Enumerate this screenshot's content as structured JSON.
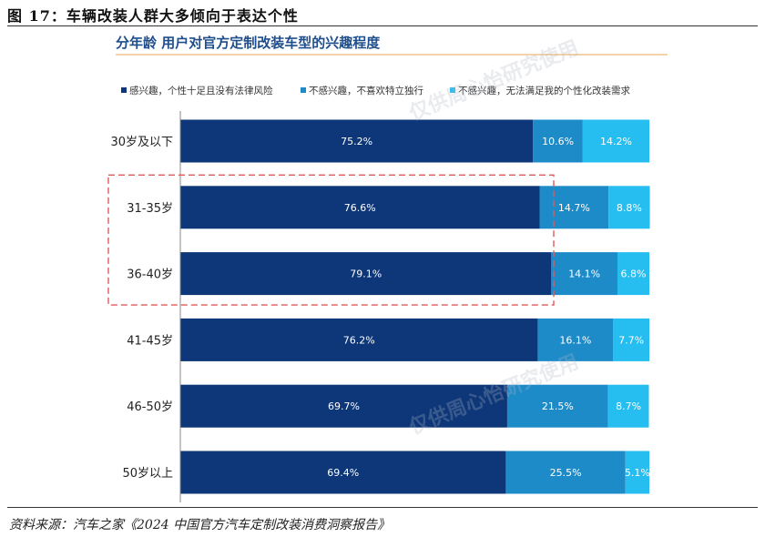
{
  "figure": {
    "title": "图 17：车辆改装人群大多倾向于表达个性",
    "source": "资料来源：汽车之家《2024 中国官方汽车定制改装消费洞察报告》"
  },
  "chart_data": {
    "type": "bar",
    "stacked": true,
    "orientation": "horizontal",
    "title": "分年龄 用户对官方定制改装车型的兴趣程度",
    "categories": [
      "30岁及以下",
      "31-35岁",
      "36-40岁",
      "41-45岁",
      "46-50岁",
      "50岁以上"
    ],
    "series": [
      {
        "name": "感兴趣，个性十足且没有法律风险",
        "values": [
          75.2,
          76.6,
          79.1,
          76.2,
          69.7,
          69.4
        ],
        "labels": [
          "75.2%",
          "76.6%",
          "79.1%",
          "76.2%",
          "69.7%",
          "69.4%"
        ]
      },
      {
        "name": "不感兴趣，不喜欢特立独行",
        "values": [
          10.6,
          14.7,
          14.1,
          16.1,
          21.5,
          25.5
        ],
        "labels": [
          "10.6%",
          "14.7%",
          "14.1%",
          "16.1%",
          "21.5%",
          "25.5%"
        ]
      },
      {
        "name": "不感兴趣，无法满足我的个性化改装需求",
        "values": [
          14.2,
          8.8,
          6.8,
          7.7,
          8.7,
          5.1
        ],
        "labels": [
          "14.2%",
          "8.8%",
          "6.8%",
          "7.7%",
          "8.7%",
          "5.1%"
        ]
      }
    ],
    "xlim": [
      0,
      100
    ],
    "legend_position": "top",
    "highlight_categories": [
      "31-35岁",
      "36-40岁"
    ],
    "watermark": "仅供周心怡研究使用",
    "colors": {
      "series": [
        "#0d3778",
        "#1e8bc9",
        "#26bdf0"
      ],
      "title": "#1f4e8c",
      "title_rule": "#f2c28a",
      "highlight_box": "#e05a5a",
      "axis": "#888888",
      "category_label": "#222222"
    }
  }
}
